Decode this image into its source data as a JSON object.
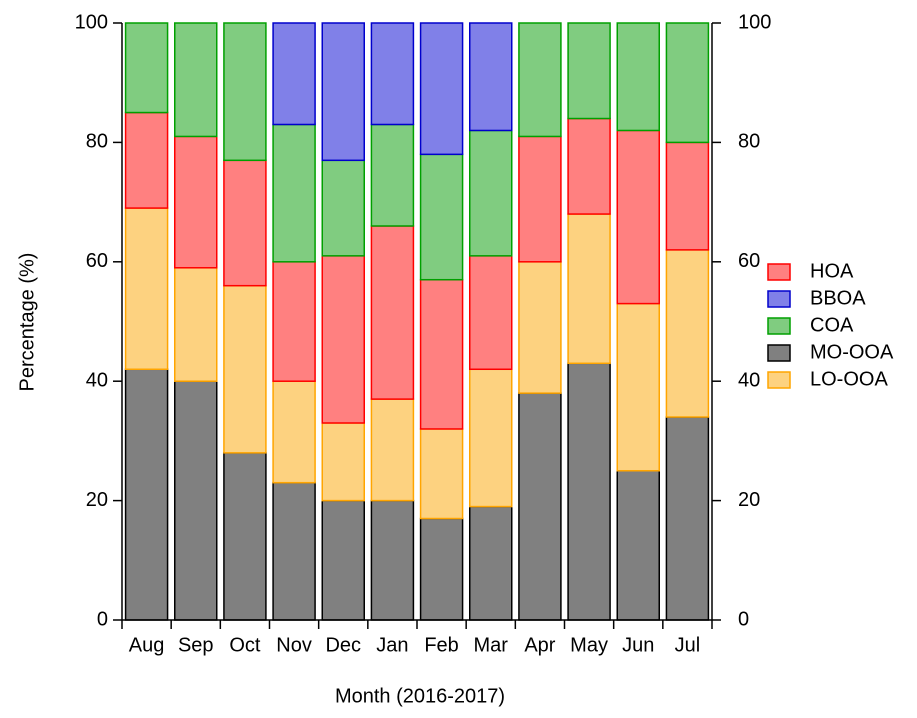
{
  "chart_data": {
    "type": "stacked_bar",
    "xlabel": "Month (2016-2017)",
    "ylabel": "Percentage (%)",
    "categories": [
      "Aug",
      "Sep",
      "Oct",
      "Nov",
      "Dec",
      "Jan",
      "Feb",
      "Mar",
      "Apr",
      "May",
      "Jun",
      "Jul"
    ],
    "series": [
      {
        "name": "MO-OOA",
        "color": "#808080",
        "edgecolor": "#000000",
        "values": [
          42,
          40,
          28,
          23,
          20,
          20,
          17,
          19,
          38,
          43,
          25,
          34
        ]
      },
      {
        "name": "LO-OOA",
        "color": "#fdd280",
        "edgecolor": "#ffa500",
        "values": [
          27,
          19,
          28,
          17,
          13,
          17,
          15,
          23,
          22,
          25,
          28,
          28
        ]
      },
      {
        "name": "HOA",
        "color": "#ff8080",
        "edgecolor": "#ff0000",
        "values": [
          16,
          22,
          21,
          20,
          28,
          29,
          25,
          19,
          21,
          16,
          29,
          18
        ]
      },
      {
        "name": "COA",
        "color": "#80cc80",
        "edgecolor": "#00a000",
        "values": [
          15,
          19,
          23,
          23,
          16,
          17,
          21,
          21,
          19,
          16,
          18,
          20
        ]
      },
      {
        "name": "BBOA",
        "color": "#8080e8",
        "edgecolor": "#0000cc",
        "values": [
          0,
          0,
          0,
          17,
          23,
          17,
          22,
          18,
          0,
          0,
          0,
          0
        ]
      }
    ],
    "ylim": [
      0,
      100
    ],
    "yticks": [
      0,
      20,
      40,
      60,
      80,
      100
    ],
    "y2lim": [
      0,
      100
    ],
    "y2ticks": [
      0,
      20,
      40,
      60,
      80,
      100
    ]
  }
}
